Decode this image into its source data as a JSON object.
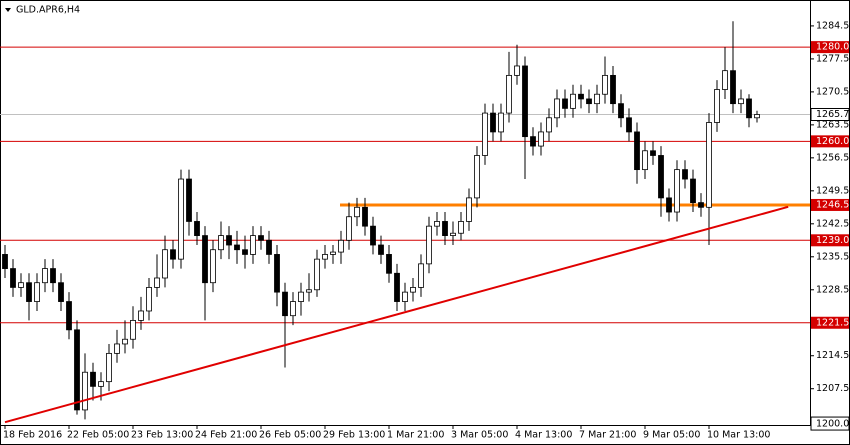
{
  "chart_data": {
    "type": "candlestick",
    "title": "GLD.APR6,H4",
    "open": [
      1236,
      1233,
      1229,
      1230,
      1226,
      1230,
      1233,
      1230,
      1226,
      1220,
      1203,
      1211,
      1208,
      1209,
      1215,
      1217,
      1218,
      1222,
      1224,
      1229,
      1231,
      1237,
      1235,
      1252,
      1243,
      1240,
      1230,
      1237,
      1240,
      1238,
      1237,
      1236,
      1240,
      1239,
      1236,
      1228,
      1223,
      1226,
      1228,
      1228.5,
      1235,
      1236,
      1236.5,
      1239,
      1244,
      1246,
      1242,
      1238,
      1236,
      1232,
      1226,
      1228,
      1229,
      1234,
      1242,
      1243,
      1240,
      1240.5,
      1243,
      1248,
      1257,
      1266,
      1262,
      1266,
      1274,
      1276,
      1261,
      1259,
      1262,
      1265,
      1269,
      1267,
      1270,
      1269,
      1268,
      1270,
      1274,
      1268,
      1265,
      1262,
      1254,
      1258,
      1257,
      1248,
      1245,
      1254,
      1252,
      1247,
      1246,
      1264,
      1271,
      1275,
      1268,
      1269,
      1265
    ],
    "high": [
      1238,
      1235,
      1232,
      1232,
      1232,
      1235,
      1235,
      1232,
      1228,
      1222,
      1215,
      1213,
      1211,
      1217,
      1220,
      1222,
      1225,
      1227,
      1231,
      1236,
      1240,
      1239,
      1254,
      1254,
      1245,
      1242,
      1239,
      1243,
      1242,
      1241,
      1240,
      1242,
      1242,
      1241,
      1238,
      1230,
      1228,
      1230,
      1232,
      1237,
      1238,
      1238,
      1241,
      1247,
      1248,
      1248,
      1244,
      1240,
      1238,
      1234,
      1230,
      1231,
      1236,
      1244,
      1245,
      1245,
      1243,
      1245,
      1250,
      1259,
      1268,
      1268,
      1268,
      1279,
      1280.5,
      1278,
      1263,
      1264,
      1267,
      1271,
      1271,
      1272,
      1272,
      1271,
      1272,
      1278,
      1276,
      1270,
      1267,
      1264,
      1260,
      1260,
      1259,
      1250,
      1256,
      1256,
      1254,
      1249,
      1266,
      1273,
      1280,
      1285.5,
      1271,
      1270,
      1266.5
    ],
    "low": [
      1231,
      1227,
      1227,
      1222,
      1224,
      1228,
      1228,
      1224,
      1218,
      1202,
      1201,
      1205,
      1205,
      1207,
      1213,
      1215,
      1216,
      1220,
      1222,
      1227,
      1229,
      1233,
      1233,
      1240,
      1238,
      1222,
      1228,
      1235,
      1235,
      1234,
      1233,
      1234,
      1237,
      1234,
      1225,
      1212,
      1221,
      1223,
      1226,
      1227,
      1233,
      1234,
      1234,
      1237,
      1242,
      1240,
      1236,
      1234,
      1230,
      1224,
      1224,
      1226,
      1227,
      1232,
      1240,
      1238,
      1238,
      1239,
      1241,
      1246,
      1255,
      1260,
      1260,
      1264,
      1272,
      1252,
      1257,
      1257,
      1260,
      1263,
      1265,
      1265,
      1267,
      1266,
      1266,
      1268,
      1266,
      1263,
      1260,
      1251,
      1252,
      1255,
      1244,
      1243,
      1243,
      1250,
      1245,
      1244,
      1238,
      1262,
      1269,
      1266,
      1266,
      1263,
      1264
    ],
    "close": [
      1233,
      1229,
      1230,
      1226,
      1230,
      1233,
      1230,
      1226,
      1220,
      1203,
      1211,
      1208,
      1209,
      1215,
      1217,
      1218,
      1222,
      1224,
      1229,
      1231,
      1237,
      1235,
      1252,
      1243,
      1240,
      1230,
      1237,
      1240,
      1238,
      1237,
      1236,
      1240,
      1239,
      1236,
      1228,
      1223,
      1226,
      1228,
      1228.5,
      1235,
      1236,
      1236.5,
      1239,
      1244,
      1246,
      1242,
      1238,
      1236,
      1232,
      1226,
      1228,
      1229,
      1234,
      1242,
      1243,
      1240,
      1240.5,
      1243,
      1248,
      1257,
      1266,
      1262,
      1266,
      1274,
      1276,
      1261,
      1259,
      1262,
      1265,
      1269,
      1267,
      1270,
      1269,
      1268,
      1270,
      1274,
      1268,
      1265,
      1262,
      1254,
      1258,
      1257,
      1248,
      1245,
      1254,
      1252,
      1247,
      1246,
      1264,
      1271,
      1275,
      1268,
      1269,
      1265,
      1265.7
    ],
    "xlim": [
      -0.625,
      100.625
    ],
    "xticks": [
      {
        "value": 0,
        "label": "18 Feb 2016"
      },
      {
        "value": 8,
        "label": "22 Feb 05:00"
      },
      {
        "value": 16,
        "label": "23 Feb 13:00"
      },
      {
        "value": 24,
        "label": "24 Feb 21:00"
      },
      {
        "value": 32,
        "label": "26 Feb 05:00"
      },
      {
        "value": 40,
        "label": "29 Feb 13:00"
      },
      {
        "value": 48,
        "label": "1 Mar 21:00"
      },
      {
        "value": 56,
        "label": "3 Mar 05:00"
      },
      {
        "value": 64,
        "label": "4 Mar 13:00"
      },
      {
        "value": 72,
        "label": "7 Mar 21:00"
      },
      {
        "value": 80,
        "label": "9 Mar 05:00"
      },
      {
        "value": 88,
        "label": "10 Mar 13:00"
      }
    ],
    "ylim": [
      1199.8,
      1290
    ],
    "yticks": [
      {
        "value": 1200,
        "label": "1200.0"
      },
      1207.5,
      1214.5,
      1228.5,
      1235.5,
      1242.5,
      1249.5,
      1256.5,
      1263.5,
      1270.5,
      1277.5,
      1284.5
    ],
    "levels": [
      {
        "value": 1280,
        "label": "1280.0",
        "color": "#d40000"
      },
      {
        "value": 1260,
        "label": "1260.0",
        "color": "#d40000"
      },
      {
        "value": 1246.5,
        "label": "1246.5",
        "color": "#ff7f00"
      },
      {
        "value": 1239,
        "label": "1239.0",
        "color": "#d40000"
      },
      {
        "value": 1221.5,
        "label": "1221.5",
        "color": "#d40000"
      }
    ],
    "current_price": 1265.7,
    "trend_line": {
      "x": [
        0,
        97.9
      ],
      "y": [
        1200.4,
        1246.1
      ],
      "color": "#e00000"
    }
  }
}
